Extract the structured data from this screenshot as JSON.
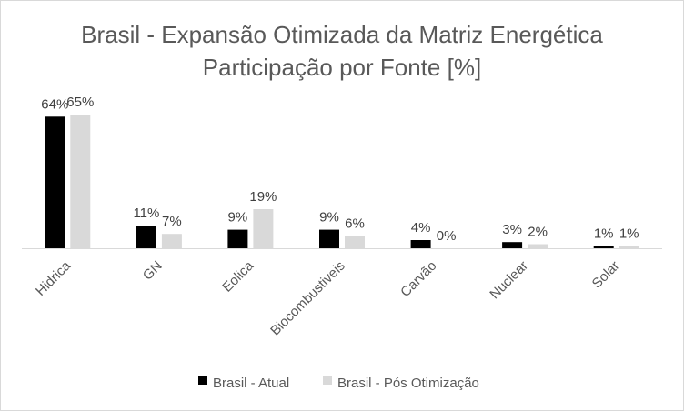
{
  "chart_data": {
    "type": "bar",
    "title": "Brasil - Expansão Otimizada da Matriz Energética",
    "subtitle": "Participação por Fonte [%]",
    "categories": [
      "Hidrica",
      "GN",
      "Eolica",
      "Biocombustiveis",
      "Carvão",
      "Nuclear",
      "Solar"
    ],
    "series": [
      {
        "name": "Brasil - Atual",
        "color": "#000000",
        "values": [
          64,
          11,
          9,
          9,
          4,
          3,
          1
        ]
      },
      {
        "name": "Brasil - Pós Otimização",
        "color": "#d9d9d9",
        "values": [
          65,
          7,
          19,
          6,
          0,
          2,
          1
        ]
      }
    ],
    "ylim": [
      0,
      65
    ],
    "value_suffix": "%",
    "xlabel": "",
    "ylabel": "",
    "grid": false,
    "legend_position": "bottom"
  }
}
